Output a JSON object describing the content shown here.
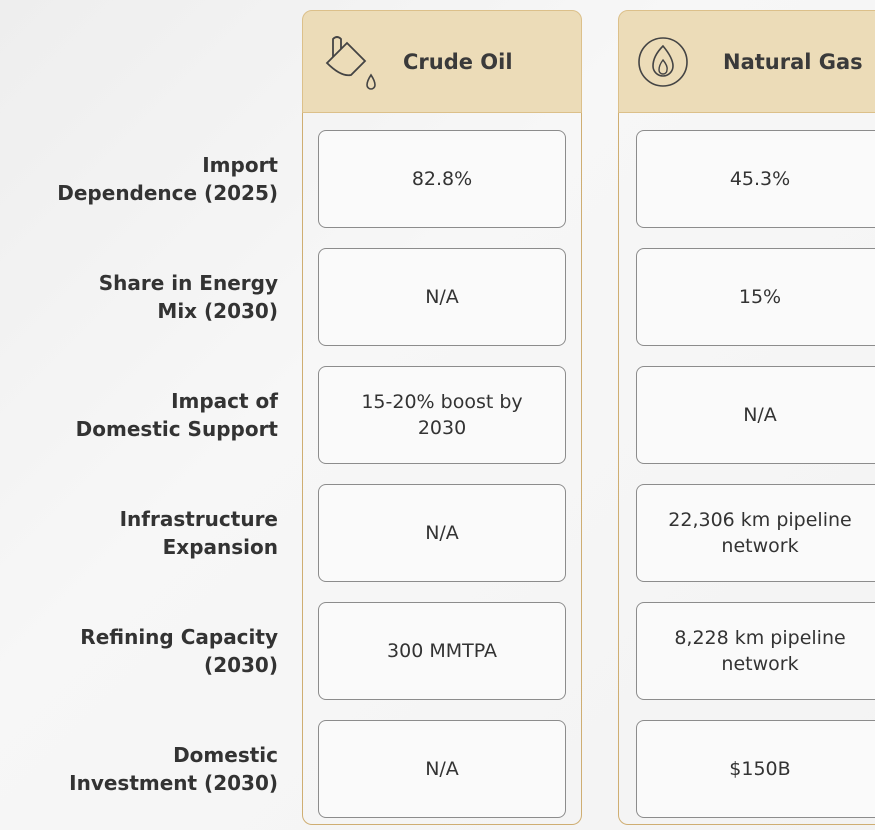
{
  "columns": [
    "Crude Oil",
    "Natural Gas"
  ],
  "rows": [
    {
      "label": [
        "Import",
        "Dependence (2025)"
      ],
      "values": [
        "82.8%",
        "45.3%"
      ]
    },
    {
      "label": [
        "Share in Energy",
        "Mix (2030)"
      ],
      "values": [
        "N/A",
        "15%"
      ]
    },
    {
      "label": [
        "Impact of",
        "Domestic Support"
      ],
      "values": [
        "15-20% boost by 2030",
        "N/A"
      ]
    },
    {
      "label": [
        "Infrastructure",
        "Expansion"
      ],
      "values": [
        "N/A",
        "22,306 km pipeline network"
      ]
    },
    {
      "label": [
        "Refining Capacity",
        "(2030)"
      ],
      "values": [
        "300 MMTPA",
        "8,228 km pipeline network"
      ]
    },
    {
      "label": [
        "Domestic",
        "Investment (2030)"
      ],
      "values": [
        "N/A",
        "$150B"
      ]
    }
  ]
}
